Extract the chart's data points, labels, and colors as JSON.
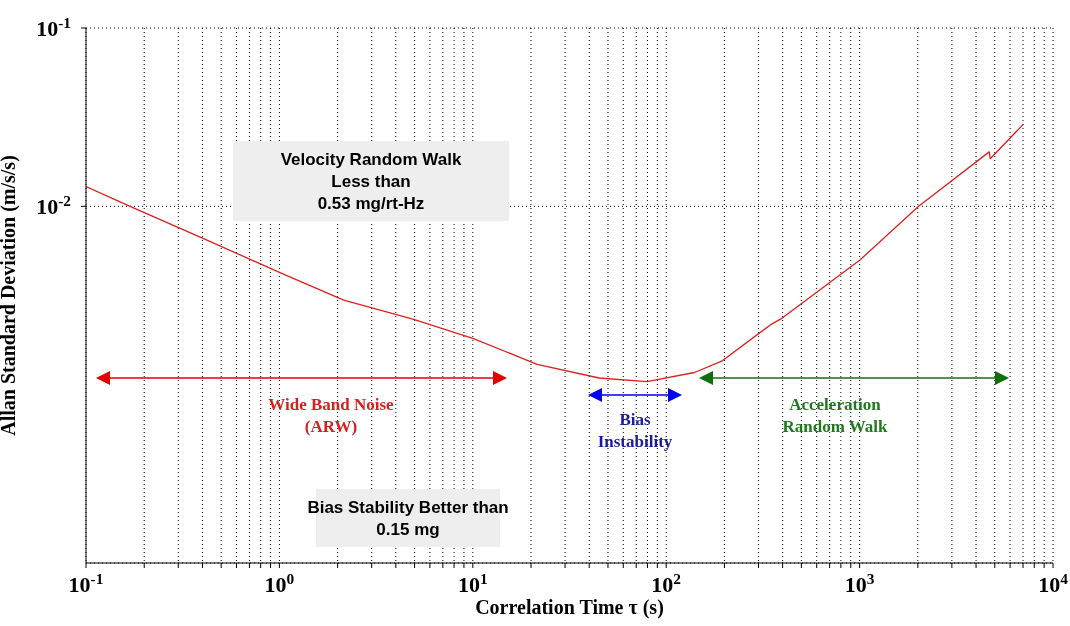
{
  "chart_data": {
    "type": "line",
    "xlabel": "Correlation Time τ (s)",
    "ylabel": "Allan Standard Deviation (m/s/s)",
    "log": "xy",
    "grid": true,
    "marker": "none",
    "line_style": "solid",
    "xlim": [
      0.1,
      10000
    ],
    "ylim": [
      0.0001,
      0.1
    ],
    "xticks": [
      {
        "value": 0.1,
        "label": "10$^{-1}$"
      },
      {
        "value": 0.2,
        "label": null
      },
      {
        "value": 0.3,
        "label": null
      },
      {
        "value": 0.4,
        "label": null
      },
      {
        "value": 0.5,
        "label": null
      },
      {
        "value": 0.6,
        "label": null
      },
      {
        "value": 0.7,
        "label": null
      },
      {
        "value": 0.8,
        "label": null
      },
      {
        "value": 0.9,
        "label": null
      },
      {
        "value": 1,
        "label": "10$^{0}$"
      },
      {
        "value": 2,
        "label": null
      },
      {
        "value": 3,
        "label": null
      },
      {
        "value": 4,
        "label": null
      },
      {
        "value": 5,
        "label": null
      },
      {
        "value": 6,
        "label": null
      },
      {
        "value": 7,
        "label": null
      },
      {
        "value": 8,
        "label": null
      },
      {
        "value": 9,
        "label": null
      },
      {
        "value": 10,
        "label": "10$^{1}$"
      },
      {
        "value": 20,
        "label": null
      },
      {
        "value": 30,
        "label": null
      },
      {
        "value": 40,
        "label": null
      },
      {
        "value": 50,
        "label": null
      },
      {
        "value": 60,
        "label": null
      },
      {
        "value": 70,
        "label": null
      },
      {
        "value": 80,
        "label": null
      },
      {
        "value": 90,
        "label": null
      },
      {
        "value": 100,
        "label": "10$^{2}$"
      },
      {
        "value": 200,
        "label": null
      },
      {
        "value": 300,
        "label": null
      },
      {
        "value": 400,
        "label": null
      },
      {
        "value": 500,
        "label": null
      },
      {
        "value": 600,
        "label": null
      },
      {
        "value": 700,
        "label": null
      },
      {
        "value": 800,
        "label": null
      },
      {
        "value": 900,
        "label": null
      },
      {
        "value": 1000,
        "label": "10$^{3}$"
      },
      {
        "value": 2000,
        "label": null
      },
      {
        "value": 3000,
        "label": null
      },
      {
        "value": 4000,
        "label": null
      },
      {
        "value": 5000,
        "label": null
      },
      {
        "value": 6000,
        "label": null
      },
      {
        "value": 7000,
        "label": null
      },
      {
        "value": 8000,
        "label": null
      },
      {
        "value": 9000,
        "label": null
      },
      {
        "value": 10000,
        "label": "10$^{4}$"
      }
    ],
    "yticks": [
      {
        "value": 0.01,
        "label": "10$^{-2}$"
      },
      {
        "value": 0.1,
        "label": "10$^{-1}$"
      }
    ],
    "series": [
      {
        "color": "#dd2020",
        "x": [
          0.1,
          0.169,
          0.4,
          1,
          2.15,
          4.9,
          10,
          21.5,
          45,
          79.5,
          140,
          195,
          347,
          390,
          1000,
          2020,
          4680,
          4740,
          7030
        ],
        "values": [
          0.0129,
          0.01,
          0.00664,
          0.00426,
          0.00298,
          0.00233,
          0.00182,
          0.0013,
          0.00109,
          0.00104,
          0.00117,
          0.00136,
          0.00217,
          0.00233,
          0.00498,
          0.01,
          0.0202,
          0.0185,
          0.0289
        ]
      }
    ],
    "annotations": [
      "Velocity Random Walk\nLess than\n0.53 mg/rt-Hz",
      "Bias Stability Better than\n0.15 mg",
      "Wide Band Noise\n(ARW)",
      "Bias\nInstability",
      "Acceleration\nRandom Walk"
    ]
  }
}
